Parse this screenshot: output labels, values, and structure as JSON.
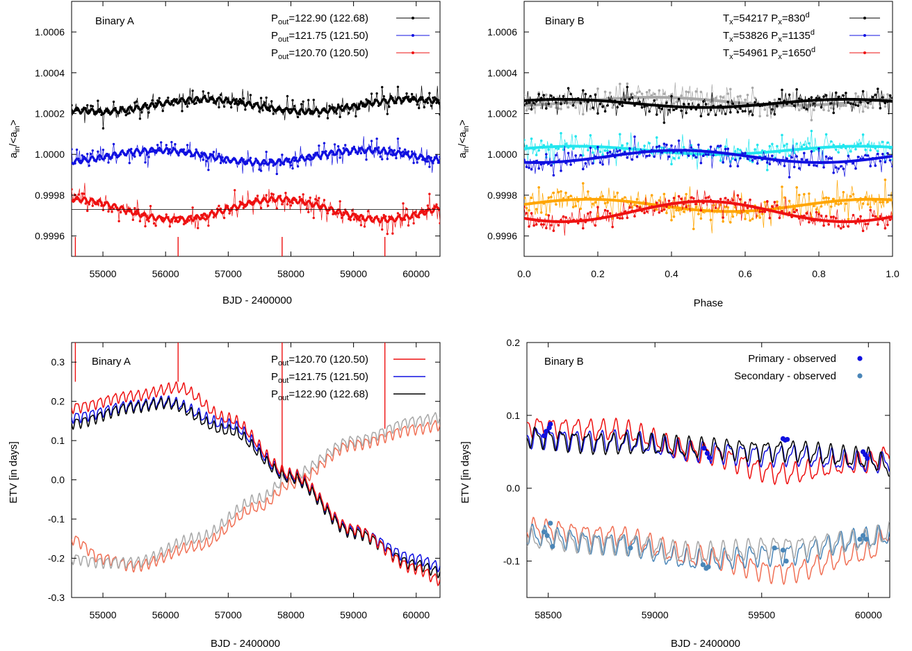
{
  "colors": {
    "black": "#000000",
    "blue": "#1010e0",
    "red": "#ee1111",
    "grey": "#a8a8a8",
    "cyan": "#22e6ee",
    "orange": "#ffa500",
    "steel": "#4a86b8",
    "salmon": "#f07055",
    "lightgrey": "#a8a8a8"
  },
  "chart_data": [
    {
      "type": "line",
      "title": "Binary A",
      "xlabel": "BJD - 2400000",
      "ylabel": "a_in/<a_in>",
      "xlim": [
        54500,
        60380
      ],
      "ylim": [
        0.9995,
        1.00075
      ],
      "xticks": [
        55000,
        56000,
        57000,
        58000,
        59000,
        60000
      ],
      "xtick_labels": [
        "55000",
        "56000",
        "57000",
        "58000",
        "59000",
        "60000"
      ],
      "yticks": [
        0.9996,
        0.9998,
        1.0,
        1.0002,
        1.0004,
        1.0006
      ],
      "ytick_labels": [
        "0.9996",
        "0.9998",
        "1.0000",
        "1.0002",
        "1.0004",
        "1.0006"
      ],
      "legend_position": "top-right",
      "reference_line": 0.99973,
      "markers_x": [
        54560,
        56200,
        57860,
        59500
      ],
      "series": [
        {
          "name": "P_out=122.90 (122.68)",
          "legend": {
            "p": "P",
            "sub": "out",
            "rest": "=122.90 (122.68)"
          },
          "color": "#000000",
          "base": 1.00024,
          "amp": 3e-05,
          "period": 3300,
          "phase": 0.6,
          "noise": 5.5e-05,
          "seed": 11,
          "marker": "dots"
        },
        {
          "name": "P_out=121.75 (121.50)",
          "legend": {
            "p": "P",
            "sub": "out",
            "rest": "=121.75 (121.50)"
          },
          "color": "#1010e0",
          "base": 0.99999,
          "amp": 3e-05,
          "period": 3300,
          "phase": 2.0,
          "noise": 5.5e-05,
          "seed": 23,
          "marker": "dots"
        },
        {
          "name": "P_out=120.70 (120.50)",
          "legend": {
            "p": "P",
            "sub": "out",
            "rest": "=120.70 (120.50)"
          },
          "color": "#ee1111",
          "base": 0.99973,
          "amp": 5e-05,
          "period": 3300,
          "phase": 4.6,
          "noise": 6e-05,
          "seed": 37,
          "marker": "dots"
        }
      ]
    },
    {
      "type": "line",
      "title": "Binary B",
      "xlabel": "Phase",
      "ylabel": "a_in/<a_in>",
      "xlim": [
        0.0,
        1.0
      ],
      "ylim": [
        0.9995,
        1.00075
      ],
      "xticks": [
        0.0,
        0.2,
        0.4,
        0.6,
        0.8,
        1.0
      ],
      "xtick_labels": [
        "0.0",
        "0.2",
        "0.4",
        "0.6",
        "0.8",
        "1.0"
      ],
      "yticks": [
        0.9996,
        0.9998,
        1.0,
        1.0002,
        1.0004,
        1.0006
      ],
      "ytick_labels": [
        "0.9996",
        "0.9998",
        "1.0000",
        "1.0002",
        "1.0004",
        "1.0006"
      ],
      "legend_position": "top-right",
      "legend": [
        {
          "t": "54217",
          "p": "830",
          "color": "#000000"
        },
        {
          "t": "53826",
          "p": "1135",
          "color": "#1010e0"
        },
        {
          "t": "54961",
          "p": "1650",
          "color": "#ee1111"
        }
      ],
      "series": [
        {
          "color": "#a8a8a8",
          "base": 1.00026,
          "amp": 2e-05,
          "noise": 8e-05,
          "seed": 5
        },
        {
          "color": "#000000",
          "base": 1.00025,
          "amp": 2e-05,
          "noise": 7e-05,
          "seed": 7
        },
        {
          "color": "#22e6ee",
          "base": 1.00002,
          "amp": 2e-05,
          "noise": 8e-05,
          "seed": 13
        },
        {
          "color": "#1010e0",
          "base": 0.99999,
          "amp": 3e-05,
          "noise": 7e-05,
          "seed": 17
        },
        {
          "color": "#ffa500",
          "base": 0.99975,
          "amp": 3e-05,
          "noise": 0.0001,
          "seed": 19
        },
        {
          "color": "#ee1111",
          "base": 0.99972,
          "amp": 5e-05,
          "noise": 7e-05,
          "seed": 29
        }
      ]
    },
    {
      "type": "line",
      "title": "Binary A",
      "xlabel": "BJD - 2400000",
      "ylabel": "ETV [in days]",
      "xlim": [
        54500,
        60380
      ],
      "ylim": [
        -0.3,
        0.35
      ],
      "xticks": [
        55000,
        56000,
        57000,
        58000,
        59000,
        60000
      ],
      "xtick_labels": [
        "55000",
        "56000",
        "57000",
        "58000",
        "59000",
        "60000"
      ],
      "yticks": [
        -0.3,
        -0.2,
        -0.1,
        0.0,
        0.1,
        0.2,
        0.3
      ],
      "ytick_labels": [
        "-0.3",
        "-0.2",
        "-0.1",
        "0.0",
        "0.1",
        "0.2",
        "0.3"
      ],
      "legend_position": "top-right",
      "markers": [
        {
          "x": 54560,
          "y0": 0.25,
          "y1": 0.35
        },
        {
          "x": 56200,
          "y0": 0.25,
          "y1": 0.35
        },
        {
          "x": 57860,
          "y0": 0.02,
          "y1": 0.35
        },
        {
          "x": 59500,
          "y0": 0.13,
          "y1": 0.35
        }
      ],
      "series": [
        {
          "name": "P_out=120.70 (120.50)",
          "legend": {
            "p": "P",
            "sub": "out",
            "rest": "=120.70 (120.50)"
          },
          "color": "#ee1111",
          "kind": "primary",
          "offset": 0.015,
          "x": [
            54500,
            55500,
            56200,
            57000,
            58000,
            59000,
            60000,
            60380
          ],
          "y": [
            0.17,
            0.2,
            0.22,
            0.14,
            0.0,
            -0.14,
            -0.24,
            -0.27
          ]
        },
        {
          "name": "P_out=121.75 (121.50)",
          "legend": {
            "p": "P",
            "sub": "out",
            "rest": "=121.75 (121.50)"
          },
          "color": "#1010e0",
          "kind": "primary",
          "offset": 0.0,
          "x": [
            54500,
            55500,
            56000,
            57000,
            58000,
            59000,
            60000,
            60380
          ],
          "y": [
            0.16,
            0.19,
            0.2,
            0.14,
            0.01,
            -0.13,
            -0.2,
            -0.22
          ]
        },
        {
          "name": "P_out=122.90 (122.68)",
          "legend": {
            "p": "P",
            "sub": "out",
            "rest": "=122.90 (122.68)"
          },
          "color": "#000000",
          "kind": "primary",
          "offset": -0.005,
          "x": [
            54500,
            55500,
            56000,
            57000,
            58000,
            59000,
            60000,
            60380
          ],
          "y": [
            0.15,
            0.19,
            0.2,
            0.13,
            0.01,
            -0.13,
            -0.21,
            -0.23
          ]
        },
        {
          "color": "#f07055",
          "kind": "secondary",
          "offset": 0.0,
          "x": [
            54500,
            55000,
            55500,
            56500,
            57500,
            58000,
            59000,
            60000,
            60380
          ],
          "y": [
            -0.15,
            -0.2,
            -0.22,
            -0.17,
            -0.07,
            -0.01,
            0.09,
            0.13,
            0.14
          ]
        },
        {
          "color": "#a8a8a8",
          "kind": "secondary",
          "offset": 0.0,
          "x": [
            54500,
            55000,
            55500,
            56500,
            57500,
            58000,
            59000,
            60000,
            60380
          ],
          "y": [
            -0.2,
            -0.21,
            -0.21,
            -0.15,
            -0.05,
            0.01,
            0.1,
            0.15,
            0.16
          ]
        }
      ]
    },
    {
      "type": "line",
      "title": "Binary B",
      "xlabel": "BJD - 2400000",
      "ylabel": "ETV [in days]",
      "xlim": [
        58400,
        60100
      ],
      "ylim": [
        -0.15,
        0.2
      ],
      "xticks": [
        58500,
        59000,
        59500,
        60000
      ],
      "xtick_labels": [
        "58500",
        "59000",
        "59500",
        "60000"
      ],
      "yticks": [
        -0.1,
        0.0,
        0.1,
        0.2
      ],
      "ytick_labels": [
        "-0.1",
        "0.0",
        "0.1",
        "0.2"
      ],
      "legend_position": "top-right",
      "legend": [
        {
          "label": "Primary - observed",
          "color": "#1010e0"
        },
        {
          "label": "Secondary - observed",
          "color": "#4a86b8"
        }
      ],
      "series": [
        {
          "color": "#ee1111",
          "x": [
            58400,
            58800,
            59200,
            59600,
            60000,
            60100
          ],
          "y": [
            0.085,
            0.08,
            0.05,
            0.02,
            0.035,
            0.045
          ]
        },
        {
          "color": "#1010e0",
          "x": [
            58400,
            58800,
            59200,
            59600,
            60000,
            60100
          ],
          "y": [
            0.07,
            0.065,
            0.05,
            0.045,
            0.035,
            0.035
          ]
        },
        {
          "color": "#000000",
          "x": [
            58400,
            58800,
            59200,
            59600,
            60000,
            60100
          ],
          "y": [
            0.07,
            0.062,
            0.055,
            0.052,
            0.04,
            0.03
          ]
        },
        {
          "color": "#f07055",
          "x": [
            58400,
            58800,
            59200,
            59600,
            60000,
            60100
          ],
          "y": [
            -0.055,
            -0.065,
            -0.095,
            -0.115,
            -0.09,
            -0.06
          ]
        },
        {
          "color": "#4a86b8",
          "x": [
            58400,
            58800,
            59200,
            59600,
            60000,
            60100
          ],
          "y": [
            -0.065,
            -0.075,
            -0.1,
            -0.09,
            -0.07,
            -0.065
          ]
        },
        {
          "color": "#a8a8a8",
          "x": [
            58400,
            58800,
            59200,
            59600,
            60000,
            60100
          ],
          "y": [
            -0.07,
            -0.075,
            -0.09,
            -0.08,
            -0.072,
            -0.06
          ]
        }
      ],
      "primary_points": {
        "x": [
          58480,
          58490,
          58505,
          58510,
          59230,
          59245,
          59255,
          59600,
          59610,
          59620,
          59975,
          59985,
          59995
        ],
        "y": [
          0.072,
          0.078,
          0.083,
          0.088,
          0.055,
          0.048,
          0.042,
          0.068,
          0.066,
          0.067,
          0.05,
          0.046,
          0.041
        ]
      },
      "secondary_points": {
        "x": [
          58480,
          58495,
          58510,
          58520,
          58885,
          59225,
          59240,
          59250,
          59560,
          59600,
          59615,
          59960,
          59975,
          59990
        ],
        "y": [
          -0.06,
          -0.065,
          -0.048,
          -0.08,
          -0.082,
          -0.105,
          -0.11,
          -0.108,
          -0.082,
          -0.085,
          -0.1,
          -0.07,
          -0.065,
          -0.07
        ]
      }
    }
  ]
}
